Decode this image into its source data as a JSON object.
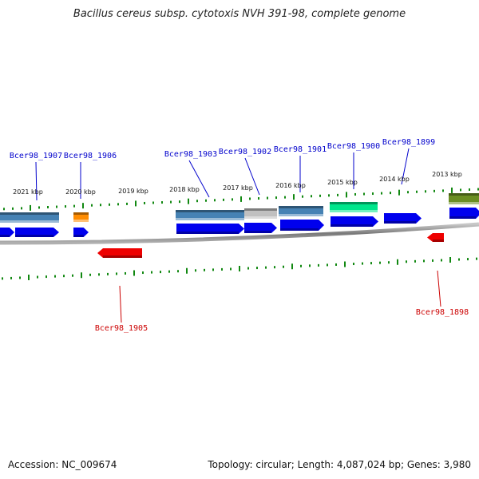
{
  "title": "Bacillus cereus subsp. cytotoxis NVH 391-98, complete genome",
  "footer": {
    "accession": "Accession: NC_009674",
    "topology": "Topology: circular; Length: 4,087,024 bp; Genes: 3,980"
  },
  "colors": {
    "backbone": "#8c8c8c",
    "cds_forward": "#0000ee",
    "cds_reverse": "#ee0000",
    "label_forward": "#0000cc",
    "label_reverse": "#cc0000",
    "tick": "#118811",
    "steelblue": "#4682b4",
    "grey": "#c0c0c0",
    "orange": "#ff8c00",
    "springgreen": "#00e68c",
    "olive": "#6b8e23"
  },
  "kbp_ticks": [
    "2021 kbp",
    "2020 kbp",
    "2019 kbp",
    "2018 kbp",
    "2017 kbp",
    "2016 kbp",
    "2015 kbp",
    "2014 kbp",
    "2013 kbp"
  ],
  "gene_labels": [
    {
      "text": "Bcer98_1907",
      "strand": "forward"
    },
    {
      "text": "Bcer98_1906",
      "strand": "forward"
    },
    {
      "text": "Bcer98_1903",
      "strand": "forward"
    },
    {
      "text": "Bcer98_1902",
      "strand": "forward"
    },
    {
      "text": "Bcer98_1901",
      "strand": "forward"
    },
    {
      "text": "Bcer98_1900",
      "strand": "forward"
    },
    {
      "text": "Bcer98_1899",
      "strand": "forward"
    },
    {
      "text": "Bcer98_1905",
      "strand": "reverse"
    },
    {
      "text": "Bcer98_1898",
      "strand": "reverse"
    }
  ],
  "feature_bands": [
    {
      "name": "band-bcer98-1907",
      "color": "steelblue"
    },
    {
      "name": "band-bcer98-1906",
      "color": "orange"
    },
    {
      "name": "band-bcer98-1903",
      "color": "steelblue"
    },
    {
      "name": "band-bcer98-1902",
      "color": "grey"
    },
    {
      "name": "band-bcer98-1901",
      "color": "steelblue"
    },
    {
      "name": "band-bcer98-1900",
      "color": "springgreen"
    },
    {
      "name": "band-bcer98-1898-adjacent",
      "color": "olive"
    }
  ]
}
